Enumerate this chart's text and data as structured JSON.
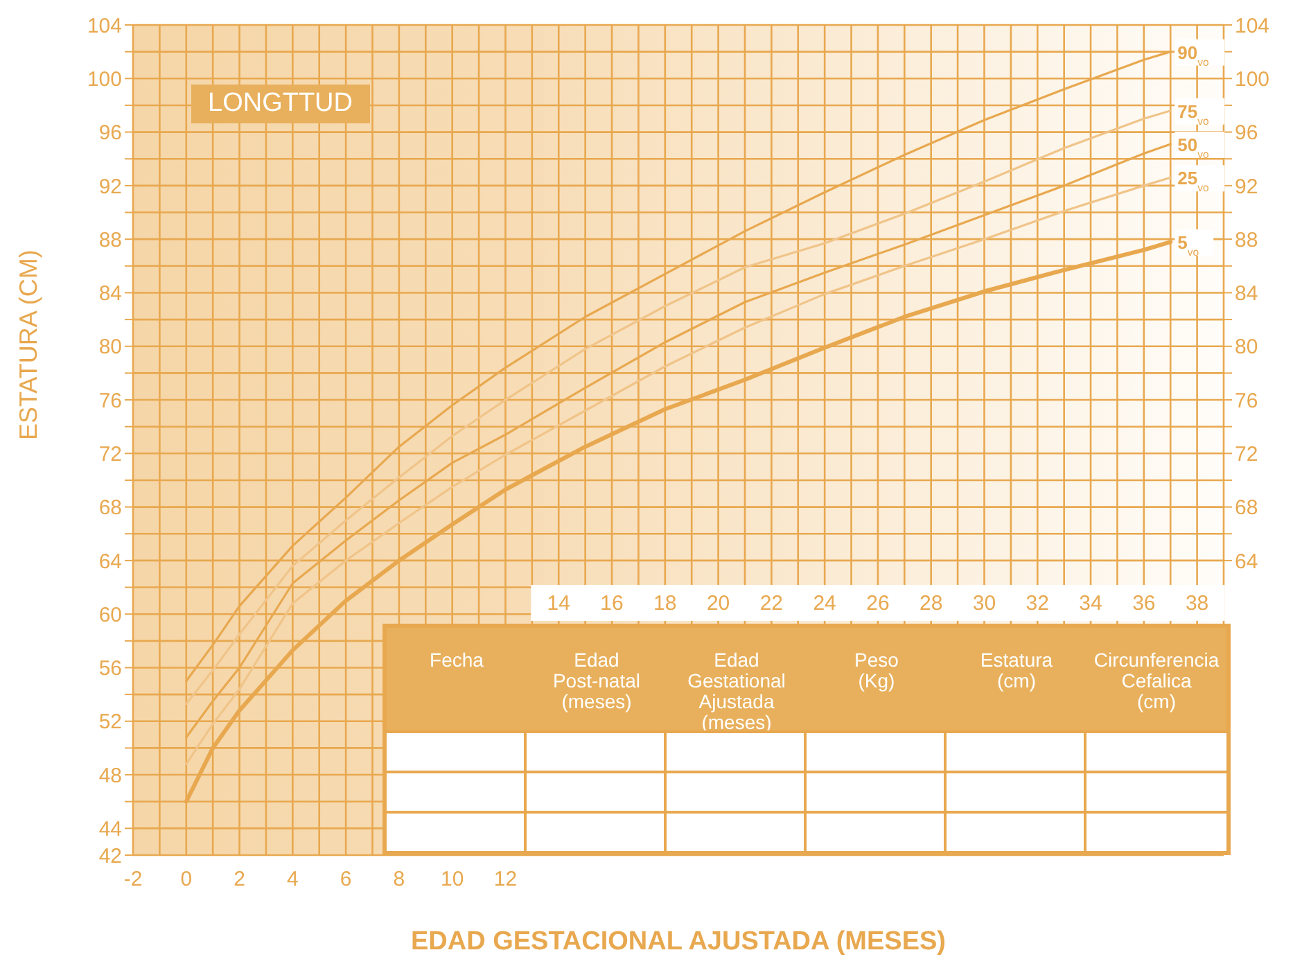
{
  "chart_data": {
    "type": "line",
    "title": "LONGTTUD",
    "xlabel": "EDAD GESTACIONAL AJUSTADA (MESES)",
    "ylabel": "ESTATURA (CM)",
    "x": [
      0,
      1,
      2,
      4,
      6,
      8,
      10,
      12,
      15,
      18,
      21,
      24,
      27,
      30,
      33,
      36,
      37
    ],
    "series": [
      {
        "name": "90$_{vo}$",
        "color": "#e8a84f",
        "values": [
          55.0,
          57.7,
          60.6,
          65.1,
          68.7,
          72.5,
          75.6,
          78.4,
          82.2,
          85.4,
          88.6,
          91.5,
          94.3,
          96.9,
          99.2,
          101.4,
          102.0
        ]
      },
      {
        "name": "75$_{vo}$",
        "color": "#f0c489",
        "values": [
          53.3,
          55.8,
          58.5,
          63.6,
          67.0,
          70.2,
          73.3,
          76.0,
          79.8,
          83.0,
          85.9,
          87.7,
          89.9,
          92.3,
          94.8,
          97.0,
          97.6
        ]
      },
      {
        "name": "50$_{vo}$",
        "color": "#e8a84f",
        "values": [
          50.8,
          53.5,
          56.0,
          62.3,
          65.5,
          68.5,
          71.3,
          73.4,
          76.9,
          80.3,
          83.3,
          85.5,
          87.6,
          89.8,
          92.0,
          94.4,
          95.1
        ]
      },
      {
        "name": "25$_{vo}$",
        "color": "#f0c489",
        "values": [
          48.8,
          51.8,
          54.4,
          60.8,
          64.0,
          66.8,
          69.5,
          71.9,
          75.2,
          78.5,
          81.4,
          83.9,
          86.0,
          88.0,
          90.1,
          92.0,
          92.6
        ]
      },
      {
        "name": "5$_{vo}$",
        "color": "#e8a84f",
        "values": [
          46.0,
          50.0,
          52.8,
          57.3,
          61.0,
          64.0,
          66.7,
          69.3,
          72.5,
          75.3,
          77.5,
          79.9,
          82.2,
          84.1,
          85.7,
          87.2,
          87.8
        ]
      }
    ],
    "xlim": [
      -2,
      39
    ],
    "xticks": [
      -2,
      {
        "value": -1,
        "label": null
      },
      0,
      {
        "value": 1,
        "label": null
      },
      2,
      {
        "value": 3,
        "label": null
      },
      4,
      {
        "value": 5,
        "label": null
      },
      6,
      {
        "value": 7,
        "label": null
      },
      8,
      {
        "value": 9,
        "label": null
      },
      10,
      {
        "value": 11,
        "label": null
      },
      12,
      {
        "value": 13,
        "label": null
      }
    ],
    "x2lim": [
      -2,
      39
    ],
    "x2ticks": [
      14,
      {
        "value": 15,
        "label": null
      },
      16,
      {
        "value": 17,
        "label": null
      },
      18,
      {
        "value": 19,
        "label": null
      },
      20,
      {
        "value": 21,
        "label": null
      },
      22,
      {
        "value": 23,
        "label": null
      },
      24,
      {
        "value": 25,
        "label": null
      },
      26,
      {
        "value": 27,
        "label": null
      },
      28,
      {
        "value": 29,
        "label": null
      },
      30,
      {
        "value": 31,
        "label": null
      },
      32,
      {
        "value": 33,
        "label": null
      },
      34,
      {
        "value": 35,
        "label": null
      },
      36,
      {
        "value": 37,
        "label": null
      },
      38,
      {
        "value": 39,
        "label": null
      }
    ],
    "ylim": [
      42,
      104
    ],
    "yticks": [
      42,
      44,
      {
        "value": 46,
        "label": null
      },
      48,
      {
        "value": 50,
        "label": null
      },
      52,
      {
        "value": 54,
        "label": null
      },
      56,
      {
        "value": 58,
        "label": null
      },
      60,
      {
        "value": 62,
        "label": null
      },
      64,
      {
        "value": 66,
        "label": null
      },
      68,
      {
        "value": 70,
        "label": null
      },
      72,
      {
        "value": 74,
        "label": null
      },
      76,
      {
        "value": 78,
        "label": null
      },
      80,
      {
        "value": 82,
        "label": null
      },
      84,
      {
        "value": 86,
        "label": null
      },
      88,
      {
        "value": 90,
        "label": null
      },
      92,
      {
        "value": 94,
        "label": null
      },
      96,
      {
        "value": 98,
        "label": null
      },
      100,
      {
        "value": 102,
        "label": null
      },
      104
    ],
    "y2lim": [
      42,
      104
    ],
    "y2ticks": [
      64,
      {
        "value": 66,
        "label": null
      },
      68,
      {
        "value": 70,
        "label": null
      },
      72,
      {
        "value": 74,
        "label": null
      },
      76,
      {
        "value": 78,
        "label": null
      },
      80,
      {
        "value": 82,
        "label": null
      },
      84,
      {
        "value": 86,
        "label": null
      },
      88,
      {
        "value": 90,
        "label": null
      },
      92,
      {
        "value": 94,
        "label": null
      },
      96,
      {
        "value": 98,
        "label": null
      },
      100,
      {
        "value": 102,
        "label": null
      },
      104
    ],
    "grid": true,
    "legend": false,
    "marker": "none",
    "line_style": "solid",
    "annotations": [
      "Fecha",
      "Edad\nPost-natal\n(meses)",
      "Edad\nGestational\nAjustada (meses)",
      "Peso\n(Kg)",
      "Estatura\n(cm)",
      "Circunferencia\nCefalica\n(cm)"
    ]
  }
}
